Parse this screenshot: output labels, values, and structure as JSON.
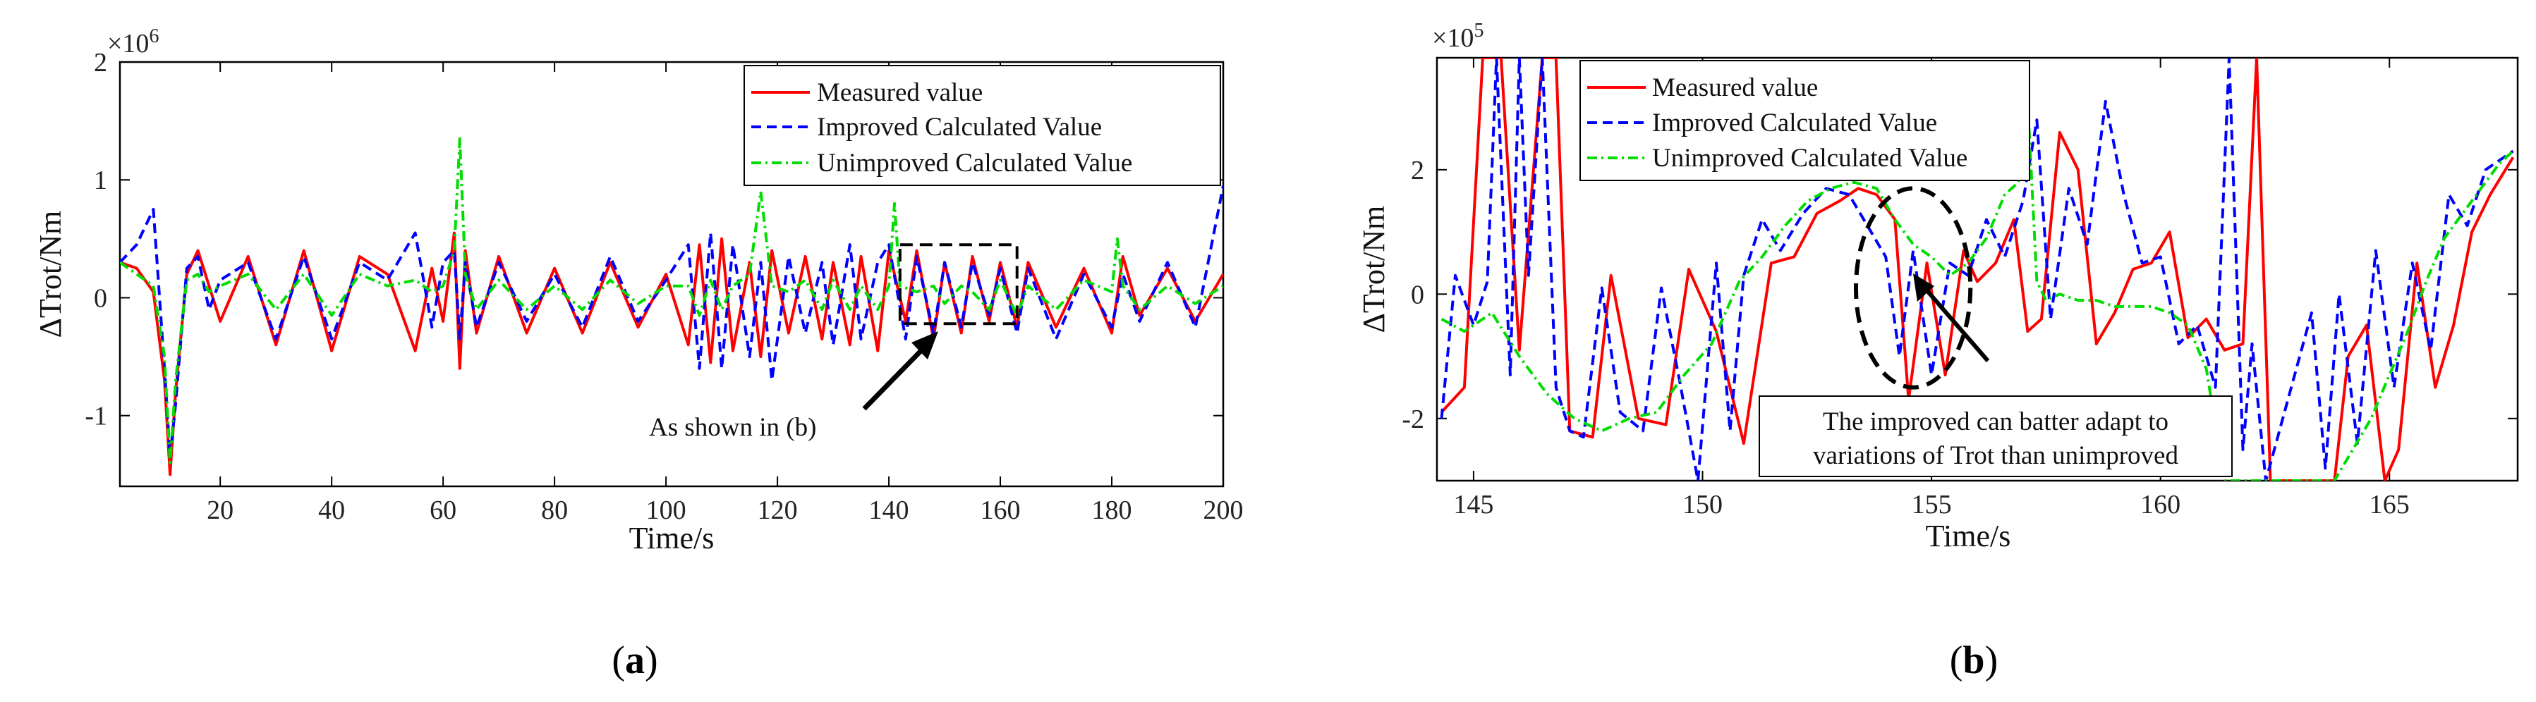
{
  "colors": {
    "measured": "#ff0000",
    "improved": "#0000ff",
    "unimproved": "#00dd00",
    "axis": "#000000"
  },
  "chart_data": [
    {
      "type": "line",
      "panel_label": "(a)",
      "panel_letter": "a",
      "xlabel": "Time/s",
      "ylabel": "ΔTrot/Nm",
      "exponent_text": "×10",
      "exponent_power": "6",
      "xlim": [
        2,
        200
      ],
      "ylim": [
        -1.6,
        2.0
      ],
      "xticks": [
        20,
        40,
        60,
        80,
        100,
        120,
        140,
        160,
        180,
        200
      ],
      "xtick_labels": [
        "20",
        "40",
        "60",
        "80",
        "100",
        "120",
        "140",
        "160",
        "180",
        "200"
      ],
      "yticks": [
        -1,
        0,
        1,
        2
      ],
      "ytick_labels": [
        "-1",
        "0",
        "1",
        "2"
      ],
      "legend": [
        "Measured value",
        "Improved Calculated Value",
        "Unimproved Calculated Value"
      ],
      "legend_position": "top-right",
      "annotation": "As shown in (b)",
      "zoom_box": {
        "x": [
          142,
          163
        ],
        "y": [
          -0.22,
          0.45
        ]
      },
      "series": [
        {
          "name": "Measured value",
          "x": [
            2,
            5,
            8,
            10,
            11,
            12,
            14,
            16,
            18,
            20,
            25,
            30,
            35,
            40,
            45,
            50,
            55,
            58,
            60,
            62,
            63,
            64,
            66,
            70,
            75,
            80,
            85,
            90,
            95,
            100,
            104,
            106,
            108,
            110,
            112,
            115,
            117,
            119,
            122,
            125,
            128,
            130,
            133,
            135,
            138,
            140,
            143,
            145,
            148,
            150,
            153,
            155,
            158,
            160,
            163,
            165,
            170,
            175,
            180,
            182,
            185,
            190,
            195,
            200
          ],
          "values": [
            0.3,
            0.25,
            0.05,
            -0.7,
            -1.5,
            -0.8,
            0.2,
            0.4,
            0.1,
            -0.2,
            0.35,
            -0.4,
            0.4,
            -0.45,
            0.35,
            0.2,
            -0.45,
            0.25,
            -0.2,
            0.55,
            -0.6,
            0.4,
            -0.3,
            0.35,
            -0.3,
            0.25,
            -0.3,
            0.3,
            -0.25,
            0.2,
            -0.4,
            0.45,
            -0.55,
            0.5,
            -0.45,
            0.3,
            -0.5,
            0.4,
            -0.3,
            0.35,
            -0.35,
            0.3,
            -0.4,
            0.35,
            -0.45,
            0.4,
            -0.2,
            0.4,
            -0.35,
            0.3,
            -0.3,
            0.35,
            -0.2,
            0.3,
            -0.25,
            0.3,
            -0.25,
            0.25,
            -0.3,
            0.35,
            -0.15,
            0.25,
            -0.2,
            0.2
          ]
        },
        {
          "name": "Improved Calculated Value",
          "x": [
            2,
            5,
            8,
            10,
            11,
            12,
            14,
            16,
            18,
            20,
            25,
            30,
            35,
            40,
            45,
            50,
            55,
            58,
            60,
            62,
            63,
            64,
            66,
            70,
            75,
            80,
            85,
            90,
            95,
            100,
            104,
            106,
            108,
            110,
            112,
            115,
            117,
            119,
            122,
            125,
            128,
            130,
            133,
            135,
            138,
            140,
            143,
            145,
            148,
            150,
            153,
            155,
            158,
            160,
            163,
            165,
            170,
            175,
            180,
            182,
            185,
            190,
            195,
            200
          ],
          "values": [
            0.3,
            0.45,
            0.75,
            -0.6,
            -1.35,
            -0.9,
            0.25,
            0.35,
            -0.1,
            0.15,
            0.3,
            -0.35,
            0.35,
            -0.35,
            0.3,
            0.15,
            0.55,
            -0.25,
            0.3,
            0.4,
            -0.35,
            0.3,
            -0.25,
            0.3,
            -0.2,
            0.2,
            -0.25,
            0.35,
            -0.2,
            0.15,
            0.45,
            -0.6,
            0.55,
            -0.6,
            0.45,
            -0.5,
            0.3,
            -0.7,
            0.35,
            -0.3,
            0.3,
            -0.4,
            0.45,
            -0.35,
            0.3,
            0.45,
            -0.35,
            0.35,
            -0.3,
            0.3,
            -0.25,
            0.3,
            -0.15,
            0.25,
            -0.3,
            0.25,
            -0.35,
            0.2,
            -0.25,
            0.2,
            -0.2,
            0.3,
            -0.25,
            0.95
          ]
        },
        {
          "name": "Unimproved Calculated Value",
          "x": [
            2,
            5,
            8,
            10,
            11,
            12,
            14,
            16,
            18,
            20,
            25,
            30,
            35,
            40,
            45,
            50,
            55,
            58,
            60,
            62,
            63,
            64,
            66,
            70,
            75,
            80,
            85,
            90,
            95,
            100,
            104,
            106,
            108,
            110,
            112,
            115,
            117,
            119,
            122,
            125,
            128,
            130,
            133,
            135,
            138,
            140,
            141,
            142,
            145,
            148,
            150,
            153,
            155,
            158,
            160,
            163,
            165,
            170,
            175,
            180,
            181,
            182,
            185,
            190,
            195,
            200
          ],
          "values": [
            0.3,
            0.2,
            0.1,
            -0.5,
            -1.4,
            -0.7,
            0.15,
            0.2,
            0.05,
            0.1,
            0.2,
            -0.1,
            0.2,
            -0.15,
            0.2,
            0.1,
            0.15,
            0.05,
            0.1,
            0.4,
            1.35,
            0.2,
            -0.1,
            0.15,
            -0.1,
            0.1,
            -0.1,
            0.15,
            -0.05,
            0.1,
            0.1,
            -0.15,
            0.15,
            -0.1,
            0.1,
            0.2,
            0.9,
            0.1,
            0.05,
            0.15,
            -0.1,
            0.15,
            -0.1,
            0.1,
            -0.1,
            0.1,
            0.8,
            0.1,
            0.05,
            0.1,
            -0.05,
            0.1,
            0.05,
            -0.1,
            0.15,
            -0.15,
            0.1,
            -0.1,
            0.15,
            0.05,
            0.5,
            0.1,
            -0.1,
            0.1,
            -0.05,
            0.1
          ]
        }
      ]
    },
    {
      "type": "line",
      "panel_label": "(b)",
      "panel_letter": "b",
      "xlabel": "Time/s",
      "ylabel": "ΔTrot/Nm",
      "exponent_text": "×10",
      "exponent_power": "5",
      "xlim": [
        144.2,
        167.8
      ],
      "ylim": [
        -3.0,
        3.8
      ],
      "xticks": [
        145,
        150,
        155,
        160,
        165
      ],
      "xtick_labels": [
        "145",
        "150",
        "155",
        "160",
        "165"
      ],
      "yticks": [
        -2,
        0,
        2
      ],
      "ytick_labels": [
        "-2",
        "0",
        "2"
      ],
      "legend": [
        "Measured value",
        "Improved Calculated Value",
        "Unimproved Calculated Value"
      ],
      "legend_position": "top-left",
      "annotation": [
        "The improved can batter adapt to",
        "variations of Trot than unimproved"
      ],
      "ellipse": {
        "cx": 154.6,
        "cy": 0.1,
        "rx": 1.25,
        "ry": 1.6
      },
      "series": [
        {
          "name": "Measured value",
          "x": [
            144.3,
            144.8,
            145.2,
            145.6,
            146.0,
            146.5,
            146.8,
            147.1,
            147.6,
            148.0,
            148.6,
            149.2,
            149.7,
            150.3,
            150.9,
            151.5,
            152.0,
            152.5,
            153.0,
            153.4,
            153.8,
            154.2,
            154.5,
            154.9,
            155.3,
            155.7,
            156.0,
            156.4,
            156.8,
            157.1,
            157.4,
            157.8,
            158.2,
            158.6,
            159.0,
            159.4,
            159.8,
            160.2,
            160.6,
            161.0,
            161.4,
            161.8,
            162.1,
            162.4,
            163.8,
            164.1,
            164.5,
            164.9,
            165.2,
            165.6,
            166.0,
            166.4,
            166.8,
            167.2,
            167.7
          ],
          "values": [
            -1.9,
            -1.5,
            3.8,
            3.8,
            -0.9,
            3.8,
            3.8,
            -2.2,
            -2.3,
            0.3,
            -2.0,
            -2.1,
            0.4,
            -0.6,
            -2.4,
            0.5,
            0.6,
            1.3,
            1.5,
            1.7,
            1.6,
            1.2,
            -1.7,
            0.5,
            -1.3,
            0.7,
            0.2,
            0.5,
            1.2,
            -0.6,
            -0.4,
            2.6,
            2.0,
            -0.8,
            -0.3,
            0.4,
            0.5,
            1.0,
            -0.7,
            -0.4,
            -0.9,
            -0.8,
            3.8,
            -3.0,
            -3.0,
            -1.0,
            -0.5,
            -3.0,
            -2.5,
            0.5,
            -1.5,
            -0.5,
            1.0,
            1.6,
            2.2
          ]
        },
        {
          "name": "Improved Calculated Value",
          "x": [
            144.3,
            144.6,
            145.0,
            145.3,
            145.5,
            145.8,
            146.0,
            146.2,
            146.5,
            146.8,
            147.1,
            147.4,
            147.8,
            148.2,
            148.7,
            149.1,
            149.5,
            149.9,
            150.3,
            150.6,
            150.9,
            151.3,
            151.7,
            152.2,
            152.7,
            153.2,
            153.6,
            154.0,
            154.3,
            154.6,
            155.0,
            155.4,
            155.8,
            156.2,
            156.6,
            157.0,
            157.3,
            157.6,
            158.0,
            158.4,
            158.8,
            159.2,
            159.6,
            160.0,
            160.4,
            160.8,
            161.2,
            161.5,
            161.8,
            162.0,
            162.3,
            163.3,
            163.6,
            163.9,
            164.3,
            164.7,
            165.1,
            165.5,
            165.9,
            166.3,
            166.7,
            167.1,
            167.7
          ],
          "values": [
            -2.0,
            0.3,
            -0.5,
            0.2,
            3.8,
            -1.3,
            3.8,
            0.3,
            3.8,
            -1.5,
            -2.2,
            -2.3,
            0.1,
            -1.9,
            -2.2,
            0.1,
            -1.4,
            -3.0,
            0.5,
            -2.2,
            0.3,
            1.2,
            0.7,
            1.3,
            1.7,
            1.6,
            1.1,
            0.6,
            -1.0,
            0.7,
            -1.3,
            0.5,
            0.3,
            1.2,
            0.6,
            1.5,
            2.8,
            -0.4,
            1.7,
            0.8,
            3.1,
            1.6,
            0.5,
            0.6,
            -0.8,
            -0.5,
            -1.5,
            3.8,
            -2.5,
            -0.8,
            -3.0,
            -0.3,
            -2.8,
            0.0,
            -2.4,
            0.7,
            -1.5,
            0.5,
            -0.9,
            1.6,
            1.1,
            2.0,
            2.3
          ]
        },
        {
          "name": "Unimproved Calculated Value",
          "x": [
            144.3,
            144.8,
            145.4,
            146.0,
            146.6,
            147.2,
            147.8,
            148.4,
            149.0,
            149.6,
            150.2,
            150.8,
            151.3,
            151.8,
            152.3,
            152.8,
            153.3,
            153.8,
            154.2,
            154.6,
            155.0,
            155.4,
            155.8,
            156.2,
            156.6,
            156.9,
            157.1,
            157.3,
            157.5,
            157.8,
            158.2,
            158.6,
            159.0,
            159.4,
            159.8,
            160.2,
            160.6,
            161.0,
            161.4,
            161.8,
            162.2,
            162.6,
            163.0,
            163.4,
            163.8,
            164.2,
            164.6,
            165.0,
            165.4,
            165.8,
            166.2,
            166.6,
            167.0,
            167.4,
            167.7
          ],
          "values": [
            -0.4,
            -0.6,
            -0.3,
            -1.0,
            -1.6,
            -2.0,
            -2.2,
            -2.0,
            -1.9,
            -1.3,
            -0.8,
            0.2,
            0.6,
            1.1,
            1.5,
            1.7,
            1.8,
            1.7,
            1.2,
            0.8,
            0.6,
            0.3,
            0.5,
            0.9,
            1.6,
            1.8,
            3.1,
            0.2,
            -0.1,
            0.0,
            -0.1,
            -0.1,
            -0.2,
            -0.2,
            -0.2,
            -0.3,
            -0.5,
            -1.2,
            -3.0,
            -3.0,
            -3.0,
            -3.0,
            -3.0,
            -3.0,
            -3.0,
            -2.5,
            -2.0,
            -1.3,
            -0.6,
            0.2,
            0.9,
            1.3,
            1.7,
            2.1,
            2.3
          ]
        }
      ]
    }
  ]
}
